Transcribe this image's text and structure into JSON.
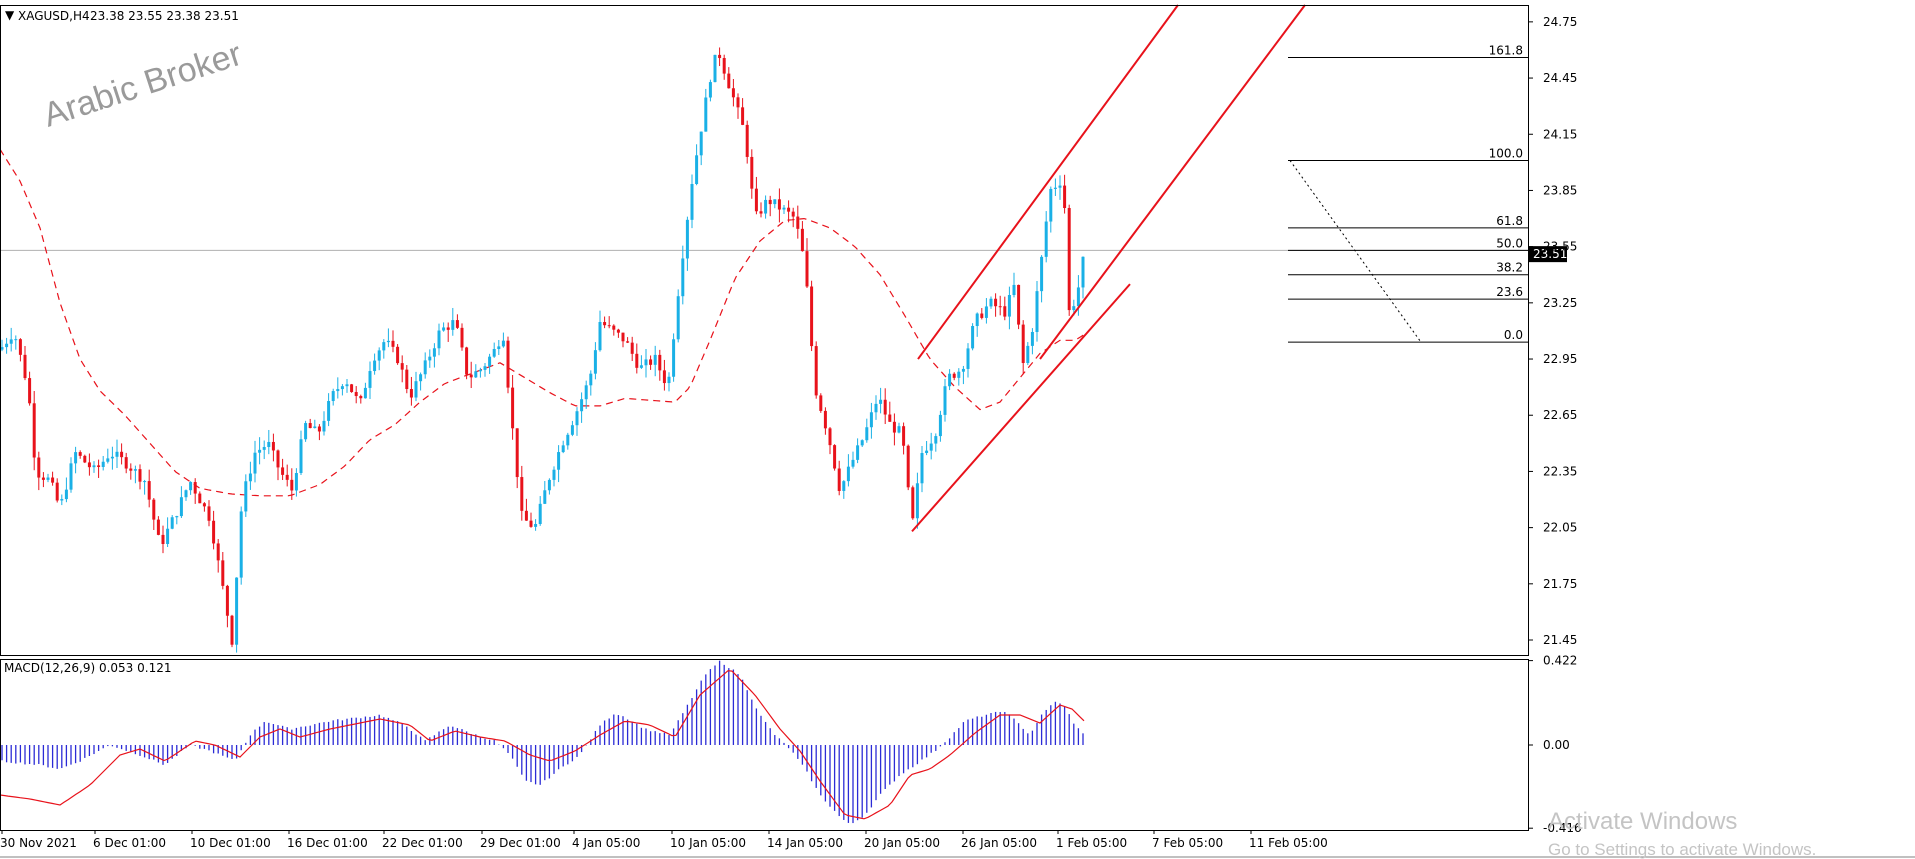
{
  "colors": {
    "bull": "#1ab0e6",
    "bear": "#e8121b",
    "ma": "#e8121b",
    "channel": "#e8121b",
    "macd_hist": "#2b2bd6",
    "macd_signal": "#e8121b",
    "price_badge": "#000000"
  },
  "chart_data": [
    {
      "type": "candlestick",
      "title": "XAGUSD,H4",
      "ohlc_label": "23.38 23.55 23.38 23.51",
      "yticks": [
        24.75,
        24.45,
        24.15,
        23.85,
        23.55,
        23.25,
        22.95,
        22.65,
        22.35,
        22.05,
        21.75,
        21.45
      ],
      "ylim": [
        21.37,
        24.84
      ],
      "last_price": "23.51",
      "x_labels": [
        "30 Nov 2021",
        "6 Dec 01:00",
        "10 Dec 01:00",
        "16 Dec 01:00",
        "22 Dec 01:00",
        "29 Dec 01:00",
        "4 Jan 05:00",
        "10 Jan 05:00",
        "14 Jan 05:00",
        "20 Jan 05:00",
        "26 Jan 05:00",
        "1 Feb 05:00",
        "7 Feb 05:00",
        "11 Feb 05:00"
      ],
      "price_path": [
        [
          0,
          23.0
        ],
        [
          14,
          23.1
        ],
        [
          28,
          22.8
        ],
        [
          36,
          22.35
        ],
        [
          50,
          22.3
        ],
        [
          60,
          22.15
        ],
        [
          75,
          22.45
        ],
        [
          95,
          22.35
        ],
        [
          110,
          22.45
        ],
        [
          125,
          22.4
        ],
        [
          145,
          22.3
        ],
        [
          160,
          21.95
        ],
        [
          178,
          22.15
        ],
        [
          190,
          22.3
        ],
        [
          210,
          22.1
        ],
        [
          222,
          21.75
        ],
        [
          232,
          21.45
        ],
        [
          242,
          22.2
        ],
        [
          255,
          22.45
        ],
        [
          268,
          22.5
        ],
        [
          280,
          22.35
        ],
        [
          292,
          22.25
        ],
        [
          305,
          22.6
        ],
        [
          318,
          22.55
        ],
        [
          332,
          22.75
        ],
        [
          345,
          22.85
        ],
        [
          360,
          22.7
        ],
        [
          372,
          22.95
        ],
        [
          385,
          23.05
        ],
        [
          398,
          22.95
        ],
        [
          410,
          22.75
        ],
        [
          424,
          22.9
        ],
        [
          440,
          23.1
        ],
        [
          455,
          23.15
        ],
        [
          468,
          22.85
        ],
        [
          482,
          22.9
        ],
        [
          495,
          23.0
        ],
        [
          503,
          23.1
        ],
        [
          512,
          22.6
        ],
        [
          522,
          22.1
        ],
        [
          535,
          22.05
        ],
        [
          548,
          22.3
        ],
        [
          562,
          22.5
        ],
        [
          575,
          22.65
        ],
        [
          590,
          22.85
        ],
        [
          600,
          23.15
        ],
        [
          612,
          23.1
        ],
        [
          625,
          23.05
        ],
        [
          640,
          22.9
        ],
        [
          655,
          22.95
        ],
        [
          668,
          22.8
        ],
        [
          680,
          23.4
        ],
        [
          692,
          23.9
        ],
        [
          700,
          24.15
        ],
        [
          710,
          24.45
        ],
        [
          718,
          24.6
        ],
        [
          730,
          24.4
        ],
        [
          745,
          24.15
        ],
        [
          755,
          23.7
        ],
        [
          768,
          23.8
        ],
        [
          782,
          23.75
        ],
        [
          795,
          23.7
        ],
        [
          805,
          23.45
        ],
        [
          815,
          22.8
        ],
        [
          828,
          22.55
        ],
        [
          840,
          22.25
        ],
        [
          852,
          22.4
        ],
        [
          865,
          22.55
        ],
        [
          878,
          22.75
        ],
        [
          890,
          22.6
        ],
        [
          902,
          22.55
        ],
        [
          912,
          22.05
        ],
        [
          922,
          22.45
        ],
        [
          935,
          22.55
        ],
        [
          948,
          22.85
        ],
        [
          962,
          22.9
        ],
        [
          975,
          23.15
        ],
        [
          990,
          23.25
        ],
        [
          1005,
          23.2
        ],
        [
          1015,
          23.35
        ],
        [
          1022,
          22.9
        ],
        [
          1032,
          23.1
        ],
        [
          1042,
          23.5
        ],
        [
          1050,
          23.85
        ],
        [
          1060,
          23.9
        ],
        [
          1065,
          23.75
        ],
        [
          1070,
          23.1
        ],
        [
          1075,
          23.3
        ],
        [
          1080,
          23.35
        ],
        [
          1084,
          23.51
        ]
      ],
      "ma_path": [
        [
          0,
          24.07
        ],
        [
          20,
          23.9
        ],
        [
          40,
          23.65
        ],
        [
          60,
          23.25
        ],
        [
          80,
          22.95
        ],
        [
          100,
          22.78
        ],
        [
          125,
          22.65
        ],
        [
          150,
          22.5
        ],
        [
          175,
          22.35
        ],
        [
          200,
          22.26
        ],
        [
          230,
          22.23
        ],
        [
          260,
          22.22
        ],
        [
          290,
          22.22
        ],
        [
          320,
          22.28
        ],
        [
          345,
          22.38
        ],
        [
          370,
          22.52
        ],
        [
          395,
          22.6
        ],
        [
          420,
          22.72
        ],
        [
          445,
          22.82
        ],
        [
          470,
          22.87
        ],
        [
          500,
          22.93
        ],
        [
          525,
          22.85
        ],
        [
          550,
          22.77
        ],
        [
          575,
          22.7
        ],
        [
          600,
          22.7
        ],
        [
          625,
          22.74
        ],
        [
          650,
          22.73
        ],
        [
          675,
          22.72
        ],
        [
          690,
          22.8
        ],
        [
          710,
          23.05
        ],
        [
          735,
          23.38
        ],
        [
          760,
          23.58
        ],
        [
          785,
          23.69
        ],
        [
          805,
          23.7
        ],
        [
          830,
          23.65
        ],
        [
          855,
          23.55
        ],
        [
          880,
          23.4
        ],
        [
          905,
          23.18
        ],
        [
          930,
          22.95
        ],
        [
          955,
          22.8
        ],
        [
          980,
          22.68
        ],
        [
          1000,
          22.72
        ],
        [
          1020,
          22.85
        ],
        [
          1040,
          22.98
        ],
        [
          1060,
          23.05
        ],
        [
          1075,
          23.05
        ],
        [
          1084,
          23.08
        ]
      ],
      "fibonacci": {
        "levels": [
          {
            "label": "161.8",
            "value": 24.56
          },
          {
            "label": "100.0",
            "value": 24.01
          },
          {
            "label": "61.8",
            "value": 23.65
          },
          {
            "label": "50.0",
            "value": 23.53
          },
          {
            "label": "38.2",
            "value": 23.4
          },
          {
            "label": "23.6",
            "value": 23.27
          },
          {
            "label": "0.0",
            "value": 23.04
          }
        ]
      },
      "channel": {
        "lower": [
          [
            912,
            22.03
          ],
          [
            1130,
            23.35
          ]
        ],
        "upper": [
          [
            918,
            22.95
          ],
          [
            1178,
            24.84
          ]
        ],
        "lower_parallel": [
          [
            1040,
            22.95
          ],
          [
            1305,
            24.84
          ]
        ]
      },
      "horizontal_line": 23.53
    },
    {
      "type": "bar",
      "title": "MACD(12,26,9) 0.053 0.121",
      "yticks": [
        "0.422",
        "0.00",
        "-0.416"
      ],
      "ylim": [
        -0.425,
        0.43
      ],
      "hist_path": [
        [
          0,
          -0.08
        ],
        [
          40,
          -0.1
        ],
        [
          60,
          -0.12
        ],
        [
          80,
          -0.08
        ],
        [
          110,
          0.0
        ],
        [
          140,
          -0.05
        ],
        [
          165,
          -0.1
        ],
        [
          190,
          0.0
        ],
        [
          210,
          -0.03
        ],
        [
          235,
          -0.08
        ],
        [
          250,
          0.05
        ],
        [
          265,
          0.12
        ],
        [
          290,
          0.08
        ],
        [
          330,
          0.12
        ],
        [
          380,
          0.15
        ],
        [
          405,
          0.1
        ],
        [
          425,
          0.02
        ],
        [
          450,
          0.1
        ],
        [
          470,
          0.06
        ],
        [
          495,
          0.02
        ],
        [
          510,
          -0.05
        ],
        [
          525,
          -0.18
        ],
        [
          540,
          -0.2
        ],
        [
          560,
          -0.12
        ],
        [
          580,
          -0.05
        ],
        [
          600,
          0.1
        ],
        [
          615,
          0.16
        ],
        [
          625,
          0.14
        ],
        [
          645,
          0.08
        ],
        [
          670,
          0.05
        ],
        [
          690,
          0.22
        ],
        [
          705,
          0.35
        ],
        [
          720,
          0.42
        ],
        [
          740,
          0.35
        ],
        [
          760,
          0.15
        ],
        [
          775,
          0.05
        ],
        [
          790,
          -0.02
        ],
        [
          805,
          -0.12
        ],
        [
          820,
          -0.25
        ],
        [
          840,
          -0.36
        ],
        [
          850,
          -0.4
        ],
        [
          865,
          -0.35
        ],
        [
          880,
          -0.25
        ],
        [
          900,
          -0.15
        ],
        [
          915,
          -0.1
        ],
        [
          935,
          -0.03
        ],
        [
          950,
          0.04
        ],
        [
          965,
          0.12
        ],
        [
          985,
          0.15
        ],
        [
          1005,
          0.17
        ],
        [
          1020,
          0.1
        ],
        [
          1030,
          0.05
        ],
        [
          1040,
          0.14
        ],
        [
          1055,
          0.22
        ],
        [
          1065,
          0.19
        ],
        [
          1075,
          0.1
        ],
        [
          1084,
          0.05
        ]
      ],
      "signal_path": [
        [
          0,
          -0.25
        ],
        [
          30,
          -0.27
        ],
        [
          60,
          -0.3
        ],
        [
          90,
          -0.2
        ],
        [
          120,
          -0.05
        ],
        [
          140,
          -0.02
        ],
        [
          165,
          -0.08
        ],
        [
          195,
          0.02
        ],
        [
          215,
          0.0
        ],
        [
          240,
          -0.06
        ],
        [
          260,
          0.04
        ],
        [
          280,
          0.08
        ],
        [
          300,
          0.04
        ],
        [
          330,
          0.08
        ],
        [
          380,
          0.13
        ],
        [
          410,
          0.1
        ],
        [
          430,
          0.02
        ],
        [
          455,
          0.07
        ],
        [
          480,
          0.04
        ],
        [
          505,
          0.02
        ],
        [
          530,
          -0.05
        ],
        [
          550,
          -0.08
        ],
        [
          575,
          -0.03
        ],
        [
          600,
          0.05
        ],
        [
          625,
          0.12
        ],
        [
          650,
          0.1
        ],
        [
          675,
          0.04
        ],
        [
          700,
          0.25
        ],
        [
          730,
          0.38
        ],
        [
          755,
          0.25
        ],
        [
          780,
          0.08
        ],
        [
          800,
          -0.03
        ],
        [
          820,
          -0.18
        ],
        [
          845,
          -0.35
        ],
        [
          865,
          -0.37
        ],
        [
          890,
          -0.3
        ],
        [
          910,
          -0.15
        ],
        [
          930,
          -0.12
        ],
        [
          950,
          -0.05
        ],
        [
          975,
          0.06
        ],
        [
          1000,
          0.15
        ],
        [
          1020,
          0.15
        ],
        [
          1040,
          0.11
        ],
        [
          1060,
          0.2
        ],
        [
          1072,
          0.18
        ],
        [
          1084,
          0.121
        ]
      ]
    }
  ],
  "watermark": "Arabic Broker",
  "activation": {
    "line1": "Activate Windows",
    "line2": "Go to Settings to activate Windows."
  }
}
